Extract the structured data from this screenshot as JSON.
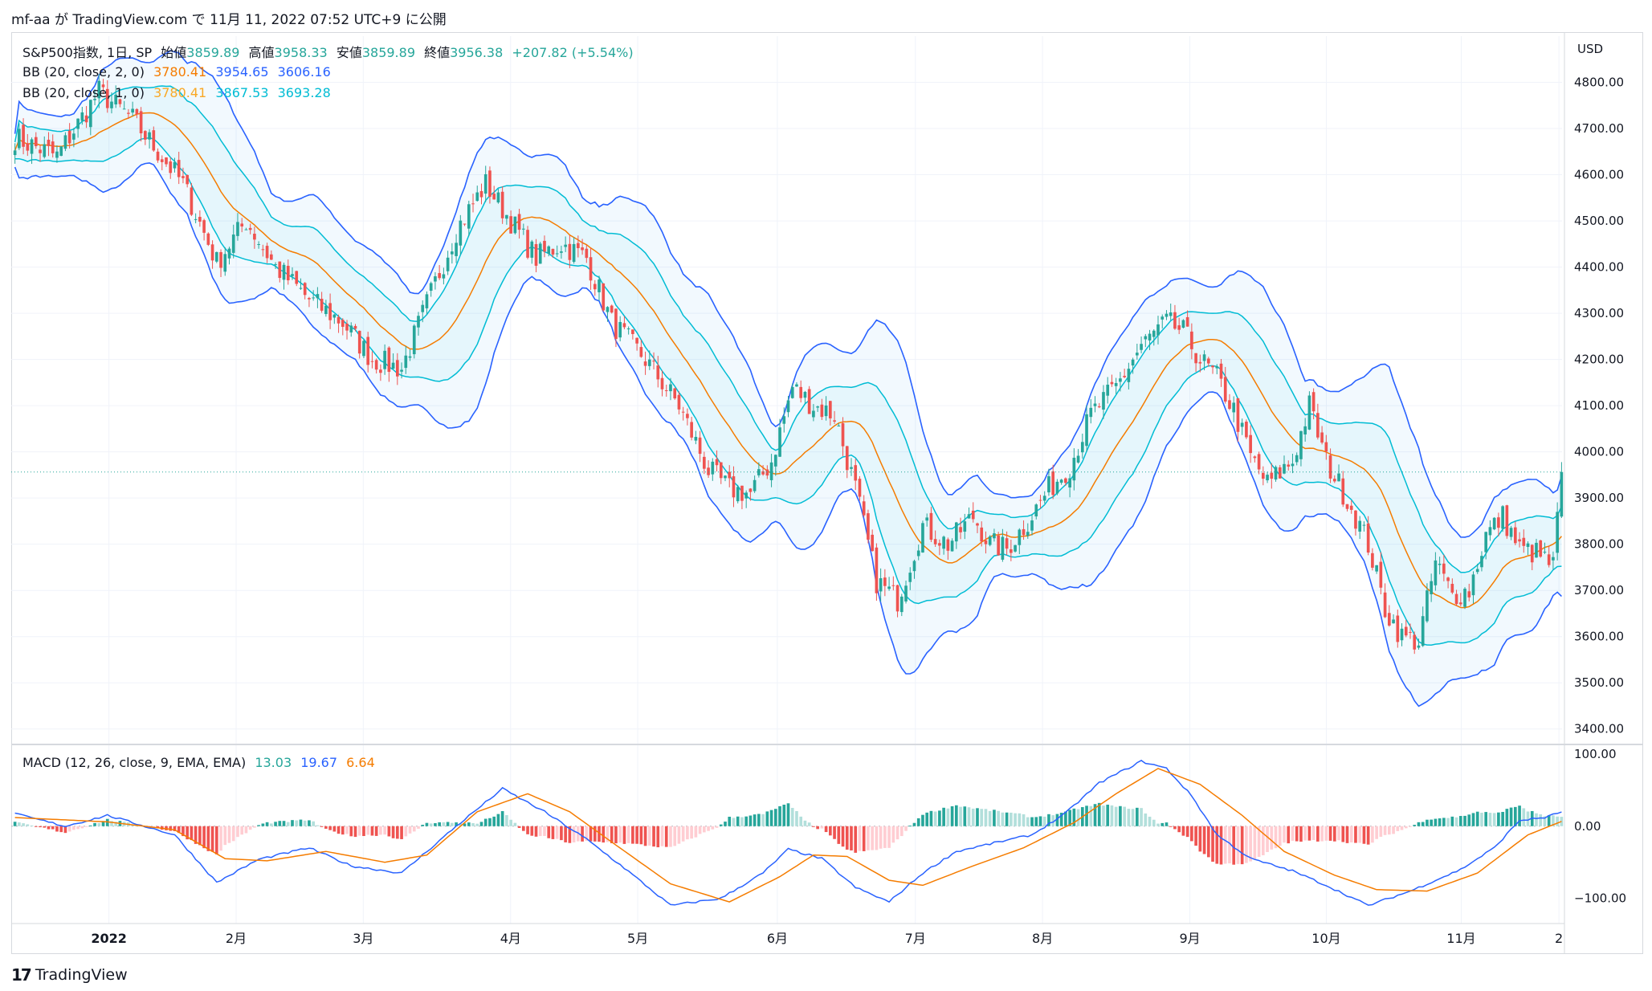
{
  "header": "mf-aa が TradingView.com で 11月 11, 2022 07:52 UTC+9 に公開",
  "brand": "TradingView",
  "colors": {
    "up": "#26a69a",
    "down": "#ef5350",
    "bbUpper": "#2962ff",
    "bbBasis": "#f57c00",
    "bbInner": "#00bcd4",
    "macd": "#2962ff",
    "signal": "#f57c00",
    "histUpStrong": "#26a69a",
    "histUpWeak": "#b2dfdb",
    "histDnStrong": "#ef5350",
    "histDnWeak": "#ffcdd2"
  },
  "legend": {
    "symbol": "S&P500指数, 1日, SP",
    "o_label": "始値",
    "o": "3859.89",
    "h_label": "高値",
    "h": "3958.33",
    "l_label": "安値",
    "l": "3859.89",
    "c_label": "終値",
    "c": "3956.38",
    "chg": "+207.82 (+5.54%)",
    "bb1": {
      "name": "BB (20, close, 2, 0)",
      "basis": "3780.41",
      "upper": "3954.65",
      "lower": "3606.16"
    },
    "bb2": {
      "name": "BB (20, close, 1, 0)",
      "basis": "3780.41",
      "upper": "3867.53",
      "lower": "3693.28"
    },
    "macd": {
      "name": "MACD (12, 26, close, 9, EMA, EMA)",
      "hist": "13.03",
      "macd": "19.67",
      "signal": "6.64"
    }
  },
  "chart_data": {
    "type": "candlestick",
    "currency": "USD",
    "price_ticks": [
      "4800.00",
      "4700.00",
      "4600.00",
      "4500.00",
      "4400.00",
      "4300.00",
      "4200.00",
      "4100.00",
      "4000.00",
      "3900.00",
      "3800.00",
      "3700.00",
      "3600.00",
      "3500.00",
      "3400.00"
    ],
    "price_ylim": [
      3370,
      4900
    ],
    "macd_ticks": [
      "100.00",
      "0.00",
      "−100.00"
    ],
    "macd_ylim": [
      -135,
      110
    ],
    "x_labels": [
      "2022",
      "2月",
      "3月",
      "4月",
      "5月",
      "6月",
      "7月",
      "8月",
      "9月",
      "10月",
      "11月",
      "2"
    ],
    "last_price": 3956.38,
    "close_anchors": [
      [
        0,
        4680
      ],
      [
        10,
        4640
      ],
      [
        20,
        4780
      ],
      [
        28,
        4720
      ],
      [
        40,
        4580
      ],
      [
        48,
        4410
      ],
      [
        55,
        4500
      ],
      [
        62,
        4400
      ],
      [
        70,
        4330
      ],
      [
        78,
        4280
      ],
      [
        85,
        4200
      ],
      [
        92,
        4180
      ],
      [
        98,
        4320
      ],
      [
        105,
        4480
      ],
      [
        112,
        4580
      ],
      [
        118,
        4500
      ],
      [
        124,
        4420
      ],
      [
        130,
        4450
      ],
      [
        136,
        4420
      ],
      [
        142,
        4280
      ],
      [
        150,
        4200
      ],
      [
        158,
        4100
      ],
      [
        165,
        3960
      ],
      [
        170,
        3920
      ],
      [
        175,
        3910
      ],
      [
        180,
        3980
      ],
      [
        185,
        4140
      ],
      [
        190,
        4100
      ],
      [
        195,
        4080
      ],
      [
        200,
        3920
      ],
      [
        205,
        3720
      ],
      [
        210,
        3680
      ],
      [
        216,
        3840
      ],
      [
        222,
        3800
      ],
      [
        228,
        3860
      ],
      [
        232,
        3800
      ],
      [
        236,
        3790
      ],
      [
        241,
        3850
      ],
      [
        246,
        3920
      ],
      [
        251,
        3970
      ],
      [
        256,
        4080
      ],
      [
        262,
        4140
      ],
      [
        268,
        4230
      ],
      [
        274,
        4280
      ],
      [
        278,
        4260
      ],
      [
        282,
        4200
      ],
      [
        286,
        4160
      ],
      [
        290,
        4090
      ],
      [
        294,
        3990
      ],
      [
        298,
        3930
      ],
      [
        304,
        3980
      ],
      [
        308,
        4100
      ],
      [
        312,
        3980
      ],
      [
        318,
        3880
      ],
      [
        322,
        3800
      ],
      [
        326,
        3660
      ],
      [
        330,
        3600
      ],
      [
        334,
        3590
      ],
      [
        338,
        3760
      ],
      [
        342,
        3690
      ],
      [
        346,
        3700
      ],
      [
        350,
        3820
      ],
      [
        354,
        3860
      ],
      [
        358,
        3790
      ],
      [
        362,
        3780
      ],
      [
        366,
        3752
      ],
      [
        368,
        3956
      ]
    ],
    "macd_anchors": [
      [
        0,
        17
      ],
      [
        12,
        0
      ],
      [
        22,
        15
      ],
      [
        38,
        -12
      ],
      [
        48,
        -78
      ],
      [
        58,
        -46
      ],
      [
        70,
        -30
      ],
      [
        80,
        -55
      ],
      [
        92,
        -65
      ],
      [
        105,
        0
      ],
      [
        116,
        52
      ],
      [
        126,
        20
      ],
      [
        136,
        -18
      ],
      [
        145,
        -58
      ],
      [
        156,
        -110
      ],
      [
        168,
        -100
      ],
      [
        178,
        -65
      ],
      [
        184,
        -32
      ],
      [
        192,
        -45
      ],
      [
        200,
        -85
      ],
      [
        208,
        -105
      ],
      [
        216,
        -65
      ],
      [
        224,
        -35
      ],
      [
        234,
        -22
      ],
      [
        242,
        -12
      ],
      [
        250,
        18
      ],
      [
        258,
        60
      ],
      [
        268,
        90
      ],
      [
        274,
        80
      ],
      [
        280,
        42
      ],
      [
        286,
        -12
      ],
      [
        294,
        -45
      ],
      [
        304,
        -62
      ],
      [
        312,
        -82
      ],
      [
        322,
        -110
      ],
      [
        332,
        -90
      ],
      [
        344,
        -60
      ],
      [
        352,
        -30
      ],
      [
        358,
        8
      ],
      [
        364,
        12
      ],
      [
        368,
        19.67
      ]
    ],
    "signal_anchors": [
      [
        0,
        12
      ],
      [
        22,
        6
      ],
      [
        38,
        -5
      ],
      [
        50,
        -45
      ],
      [
        60,
        -48
      ],
      [
        74,
        -35
      ],
      [
        88,
        -50
      ],
      [
        98,
        -40
      ],
      [
        110,
        20
      ],
      [
        122,
        45
      ],
      [
        132,
        20
      ],
      [
        142,
        -22
      ],
      [
        156,
        -80
      ],
      [
        170,
        -105
      ],
      [
        182,
        -70
      ],
      [
        190,
        -40
      ],
      [
        198,
        -42
      ],
      [
        208,
        -75
      ],
      [
        216,
        -82
      ],
      [
        228,
        -55
      ],
      [
        240,
        -30
      ],
      [
        252,
        5
      ],
      [
        262,
        45
      ],
      [
        272,
        80
      ],
      [
        282,
        58
      ],
      [
        292,
        15
      ],
      [
        302,
        -35
      ],
      [
        314,
        -68
      ],
      [
        324,
        -88
      ],
      [
        336,
        -90
      ],
      [
        348,
        -65
      ],
      [
        360,
        -12
      ],
      [
        368,
        6.64
      ]
    ]
  }
}
